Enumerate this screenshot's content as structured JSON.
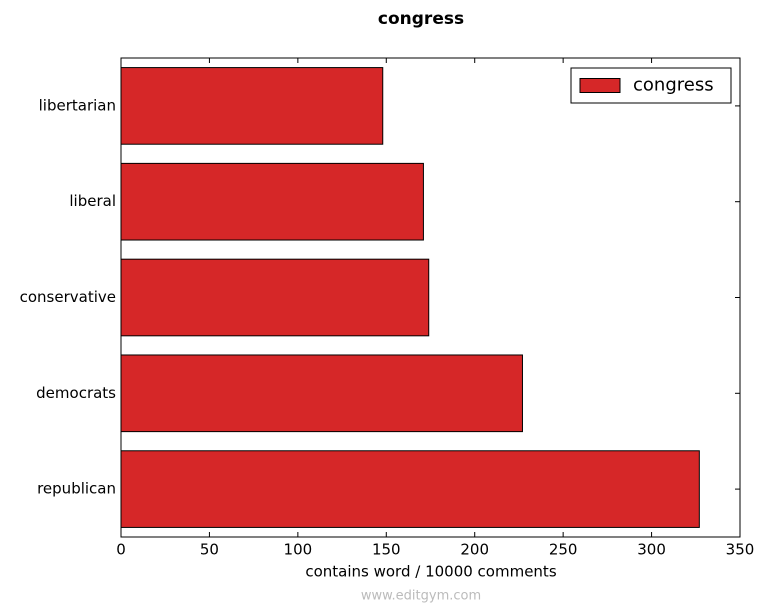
{
  "chart_data": {
    "type": "barh",
    "title": "congress",
    "xlabel": "contains word / 10000 comments",
    "categories": [
      "libertarian",
      "liberal",
      "conservative",
      "democrats",
      "republican"
    ],
    "series": [
      {
        "name": "congress",
        "color": "#d62728",
        "values": [
          148,
          171,
          174,
          227,
          327
        ]
      }
    ],
    "xlim": [
      0,
      350
    ],
    "xticks": [
      0,
      50,
      100,
      150,
      200,
      250,
      300,
      350
    ],
    "legend": "upper right"
  },
  "watermark": "www.editgym.com"
}
